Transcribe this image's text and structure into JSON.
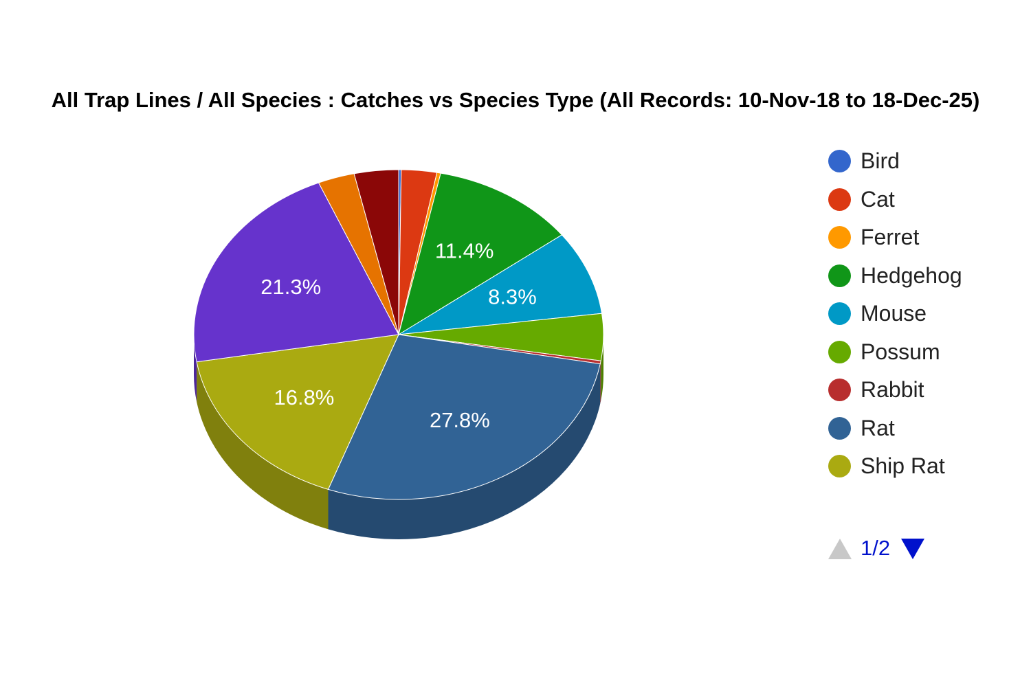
{
  "chart_data": {
    "type": "pie",
    "title": "All Trap Lines / All Species : Catches vs Species Type (All Records: 10-Nov-18 to 18-Dec-25)",
    "three_d": true,
    "legend_position": "right",
    "slices": [
      {
        "name": "Bird",
        "value": 0.2,
        "color": "#3366cc"
      },
      {
        "name": "Cat",
        "value": 2.8,
        "color": "#dc3912"
      },
      {
        "name": "Ferret",
        "value": 0.3,
        "color": "#ff9900"
      },
      {
        "name": "Hedgehog",
        "value": 11.4,
        "color": "#109618",
        "label": "11.4%"
      },
      {
        "name": "Mouse",
        "value": 8.3,
        "color": "#0099c6",
        "label": "8.3%"
      },
      {
        "name": "Possum",
        "value": 4.6,
        "color": "#66aa00"
      },
      {
        "name": "Rabbit",
        "value": 0.3,
        "color": "#b82e2e"
      },
      {
        "name": "Rat",
        "value": 27.8,
        "color": "#316395",
        "label": "27.8%"
      },
      {
        "name": "Ship Rat",
        "value": 16.8,
        "color": "#aaaa11",
        "label": "16.8%"
      },
      {
        "name": "",
        "value": 21.3,
        "color": "#6633cc",
        "label": "21.3%"
      },
      {
        "name": "",
        "value": 2.9,
        "color": "#e67300"
      },
      {
        "name": "",
        "value": 3.5,
        "color": "#8b0707"
      }
    ]
  },
  "legend": {
    "items": [
      {
        "label": "Bird",
        "color": "#3366cc"
      },
      {
        "label": "Cat",
        "color": "#dc3912"
      },
      {
        "label": "Ferret",
        "color": "#ff9900"
      },
      {
        "label": "Hedgehog",
        "color": "#109618"
      },
      {
        "label": "Mouse",
        "color": "#0099c6"
      },
      {
        "label": "Possum",
        "color": "#66aa00"
      },
      {
        "label": "Rabbit",
        "color": "#b82e2e"
      },
      {
        "label": "Rat",
        "color": "#316395"
      },
      {
        "label": "Ship Rat",
        "color": "#aaaa11"
      }
    ],
    "page_text": "1/2"
  }
}
